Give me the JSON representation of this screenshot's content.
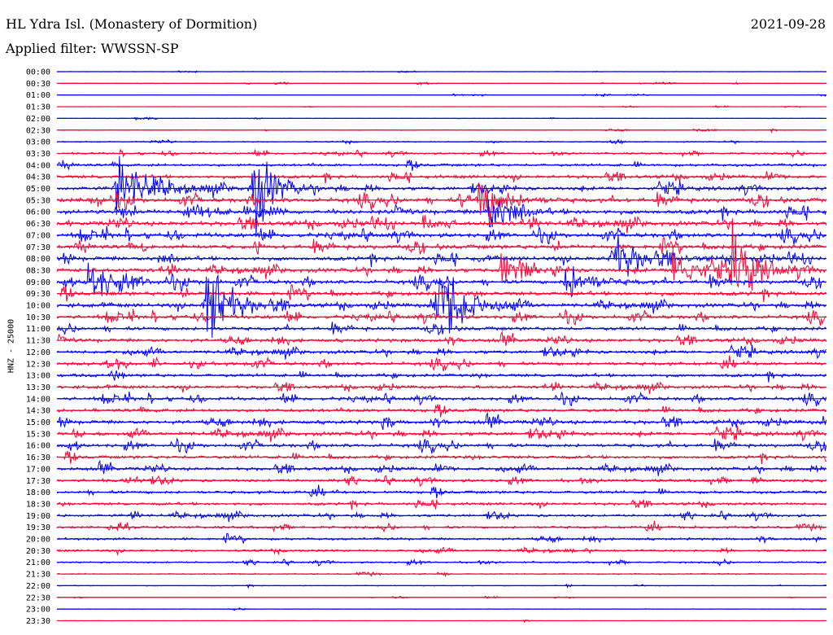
{
  "header": {
    "station_title": "HL Ydra Isl. (Monastery of Dormition)",
    "date": "2021-09-28",
    "filter": "Applied filter: WWSSN-SP"
  },
  "chart_data": {
    "type": "line",
    "title": "HL Ydra Isl. (Monastery of Dormition)",
    "ylabel": "HNZ - 25000",
    "x_range_minutes": [
      0,
      30
    ],
    "trace_colors": [
      "#0000ff",
      "#ff0033"
    ],
    "rows": [
      "00:00",
      "00:30",
      "01:00",
      "01:30",
      "02:00",
      "02:30",
      "03:00",
      "03:30",
      "04:00",
      "04:30",
      "05:00",
      "05:30",
      "06:00",
      "06:30",
      "07:00",
      "07:30",
      "08:00",
      "08:30",
      "09:00",
      "09:30",
      "10:00",
      "10:30",
      "11:00",
      "11:30",
      "12:00",
      "12:30",
      "13:00",
      "13:30",
      "14:00",
      "14:30",
      "15:00",
      "15:30",
      "16:00",
      "16:30",
      "17:00",
      "17:30",
      "18:00",
      "18:30",
      "19:00",
      "19:30",
      "20:00",
      "20:30",
      "21:00",
      "21:30",
      "22:00",
      "22:30",
      "23:00",
      "23:30"
    ],
    "noise_level": [
      0.3,
      0.4,
      0.3,
      0.3,
      0.4,
      0.6,
      0.9,
      1.5,
      2.2,
      2.6,
      3.0,
      3.5,
      3.6,
      3.6,
      3.4,
      3.4,
      3.3,
      3.3,
      3.2,
      3.2,
      3.1,
      3.0,
      2.9,
      2.8,
      2.7,
      2.6,
      2.6,
      2.5,
      2.6,
      2.7,
      3.0,
      3.0,
      2.8,
      2.6,
      2.6,
      2.4,
      2.3,
      2.2,
      2.2,
      2.0,
      1.9,
      1.7,
      1.4,
      1.0,
      0.6,
      0.4,
      0.4,
      0.3
    ],
    "events": [
      {
        "row": 10,
        "x_min": 2.3,
        "amplitude": 60,
        "duration_min": 1.8
      },
      {
        "row": 10,
        "x_min": 7.6,
        "amplitude": 90,
        "duration_min": 1.2
      },
      {
        "row": 12,
        "x_min": 5.3,
        "amplitude": 25,
        "duration_min": 0.8
      },
      {
        "row": 17,
        "x_min": 17.3,
        "amplitude": 40,
        "duration_min": 1.0
      },
      {
        "row": 18,
        "x_min": 1.2,
        "amplitude": 45,
        "duration_min": 1.6
      },
      {
        "row": 20,
        "x_min": 5.8,
        "amplitude": 120,
        "duration_min": 1.2
      },
      {
        "row": 20,
        "x_min": 14.8,
        "amplitude": 115,
        "duration_min": 1.4
      },
      {
        "row": 11,
        "x_min": 16.4,
        "amplitude": 55,
        "duration_min": 1.4
      },
      {
        "row": 12,
        "x_min": 16.8,
        "amplitude": 45,
        "duration_min": 1.2
      },
      {
        "row": 16,
        "x_min": 21.6,
        "amplitude": 50,
        "duration_min": 1.6
      },
      {
        "row": 17,
        "x_min": 24.0,
        "amplitude": 55,
        "duration_min": 1.4
      },
      {
        "row": 17,
        "x_min": 26.3,
        "amplitude": 60,
        "duration_min": 1.4
      },
      {
        "row": 18,
        "x_min": 19.8,
        "amplitude": 40,
        "duration_min": 1.4
      }
    ]
  }
}
